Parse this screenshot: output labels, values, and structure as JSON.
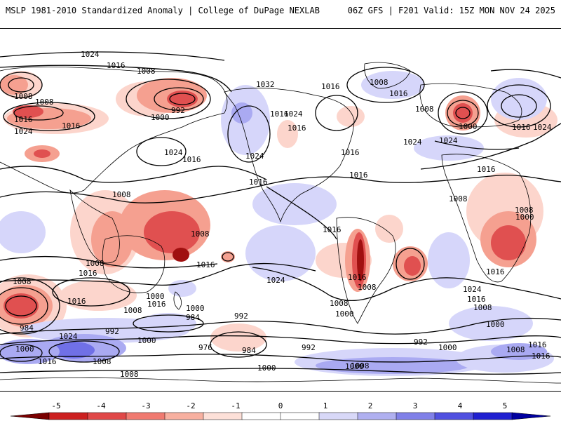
{
  "header": {
    "title_left": "MSLP 1981-2010 Standardized Anomaly | College of DuPage NEXLAB",
    "title_right": "06Z GFS | F201 Valid: 15Z MON NOV 24 2025"
  },
  "colorbar": {
    "tick_labels": [
      "-5",
      "-4",
      "-3",
      "-2",
      "-1",
      "0",
      "1",
      "2",
      "3",
      "4",
      "5"
    ],
    "colors": [
      "#7a0000",
      "#cc2020",
      "#e04848",
      "#f07a70",
      "#f8b0a0",
      "#fde0d8",
      "#ffffff",
      "#ffffff",
      "#d8d8f8",
      "#b0b0f0",
      "#8080e8",
      "#5050e0",
      "#2020d0",
      "#0000a0"
    ]
  },
  "map": {
    "isobar_labels": [
      "1024",
      "1016",
      "1008",
      "1008",
      "1016",
      "1024",
      "1008",
      "992",
      "1000",
      "1016",
      "1024",
      "1016",
      "1008",
      "1008",
      "1016",
      "1008",
      "1016",
      "1008",
      "1000",
      "1016",
      "1008",
      "1016",
      "984",
      "1000",
      "1016",
      "1008",
      "1000",
      "984",
      "992",
      "1000",
      "976",
      "984",
      "1000",
      "992",
      "1008",
      "1024",
      "1032",
      "1016",
      "1024",
      "1016",
      "1024",
      "1016",
      "1016",
      "1016",
      "1016",
      "1016",
      "1024",
      "1008",
      "1000",
      "1008",
      "1016",
      "992",
      "1000",
      "1000",
      "992",
      "1008",
      "1000",
      "1024",
      "1016",
      "1008",
      "1016",
      "1008",
      "1024",
      "1016",
      "1008",
      "1000",
      "1016",
      "1008",
      "1016",
      "1024",
      "1008",
      "1024",
      "1016",
      "1016",
      "1000",
      "1008"
    ],
    "colors": {
      "neg_strong": "#a01010",
      "neg_mid": "#e05050",
      "neg_light": "#f5a090",
      "neg_faint": "#fcd5cc",
      "pos_faint": "#d6d6fa",
      "pos_light": "#aaaaf2",
      "pos_mid": "#7070e6",
      "pos_strong": "#2a2ad4",
      "coast": "#000000",
      "isobar": "#000000"
    }
  }
}
